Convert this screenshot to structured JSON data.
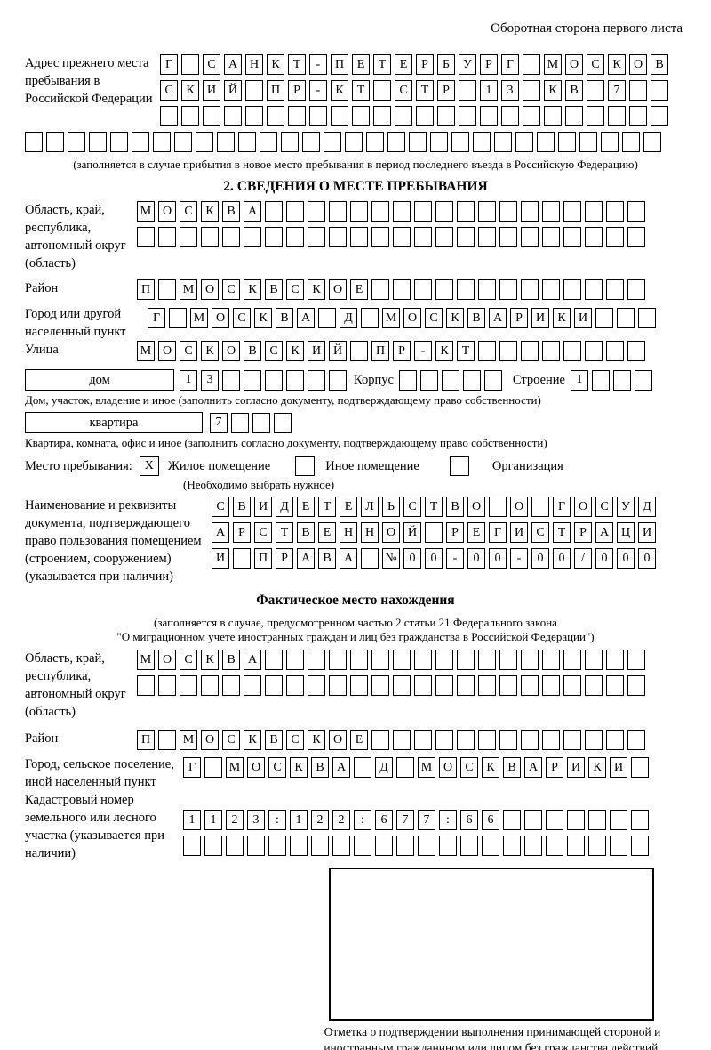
{
  "page": {
    "corner_note": "Оборотная сторона первого листа"
  },
  "prev_address": {
    "label": "Адрес прежнего места пребывания в Российской Федерации",
    "rows": [
      {
        "chars": "Г САНКТ-ПЕТЕРБУРГ МОСКОВ",
        "len": 24
      },
      {
        "chars": "СКИЙ ПР-КТ СТР 13 КВ 7",
        "len": 24
      },
      {
        "chars": "",
        "len": 24
      },
      {
        "chars": "",
        "len": 30
      }
    ],
    "note": "(заполняется в случае прибытия в новое место пребывания в период последнего въезда в Российскую Федерацию)"
  },
  "section2": {
    "title": "2. СВЕДЕНИЯ О МЕСТЕ ПРЕБЫВАНИЯ",
    "region_label": "Область, край, республика, автономный округ (область)",
    "region_rows": [
      {
        "chars": "МОСКВА",
        "len": 24
      },
      {
        "chars": "",
        "len": 24
      }
    ],
    "district_label": "Район",
    "district_row": {
      "chars": "П МОСКВСКОЕ",
      "len": 24
    },
    "city_label": "Город или другой населенный пункт",
    "city_row": {
      "chars": "Г МОСКВА Д МОСКВАРИКИ",
      "len": 24
    },
    "street_label": "Улица",
    "street_row": {
      "chars": "МОСКОВСКИЙ ПР-КТ",
      "len": 24
    },
    "house_label": "дом",
    "house_row": {
      "chars": "13",
      "len": 8
    },
    "korpus_label": "Корпус",
    "korpus_row": {
      "chars": "",
      "len": 5
    },
    "stroenie_label": "Строение",
    "stroenie_row": {
      "chars": "1",
      "len": 4
    },
    "house_note": "Дом, участок, владение и иное (заполнить согласно документу, подтверждающему право собственности)",
    "apartment_label": "квартира",
    "apartment_row": {
      "chars": "7",
      "len": 4
    },
    "apartment_note": "Квартира, комната, офис и иное (заполнить согласно документу, подтверждающему право собственности)",
    "stay": {
      "label": "Место пребывания:",
      "options": [
        {
          "label": "Жилое помещение",
          "mark": "X"
        },
        {
          "label": "Иное помещение",
          "mark": ""
        },
        {
          "label": "Организация",
          "mark": ""
        }
      ],
      "note": "(Необходимо выбрать нужное)"
    },
    "document_label": "Наименование и реквизиты документа, подтверждающего право пользования помещением (строением, сооружением) (указывается при наличии)",
    "document_rows": [
      {
        "chars": "СВИДЕТЕЛЬСТВО О ГОСУД",
        "len": 21
      },
      {
        "chars": "АРСТВЕННОЙ РЕГИСТРАЦИ",
        "len": 21
      },
      {
        "chars": "И ПРАВА №00-00-00/000",
        "len": 21
      }
    ]
  },
  "actual": {
    "title": "Фактическое место нахождения",
    "note_line1": "(заполняется в случае, предусмотренном частью 2 статьи 21 Федерального закона",
    "note_line2": "\"О миграционном учете иностранных граждан и лиц без гражданства в Российской Федерации\")",
    "region_label": "Область, край, республика, автономный округ (область)",
    "region_rows": [
      {
        "chars": "МОСКВА",
        "len": 24
      },
      {
        "chars": "",
        "len": 24
      }
    ],
    "district_label": "Район",
    "district_row": {
      "chars": "П МОСКВСКОЕ",
      "len": 24
    },
    "city_label": "Город, сельское поселение, иной населенный пункт",
    "city_row": {
      "chars": "Г МОСКВА Д МОСКВАРИКИ",
      "len": 22
    },
    "cadastral_label": "Кадастровый номер земельного или лесного участка (указывается при наличии)",
    "cadastral_rows": [
      {
        "chars": "1123:122:677:66",
        "len": 22
      },
      {
        "chars": "",
        "len": 22
      }
    ]
  },
  "stamp": {
    "caption": "Отметка о подтверждении выполнения принимающей стороной и иностранным гражданином или лицом без гражданства действий, необходимых для его постановки на учет по месту пребывания"
  }
}
